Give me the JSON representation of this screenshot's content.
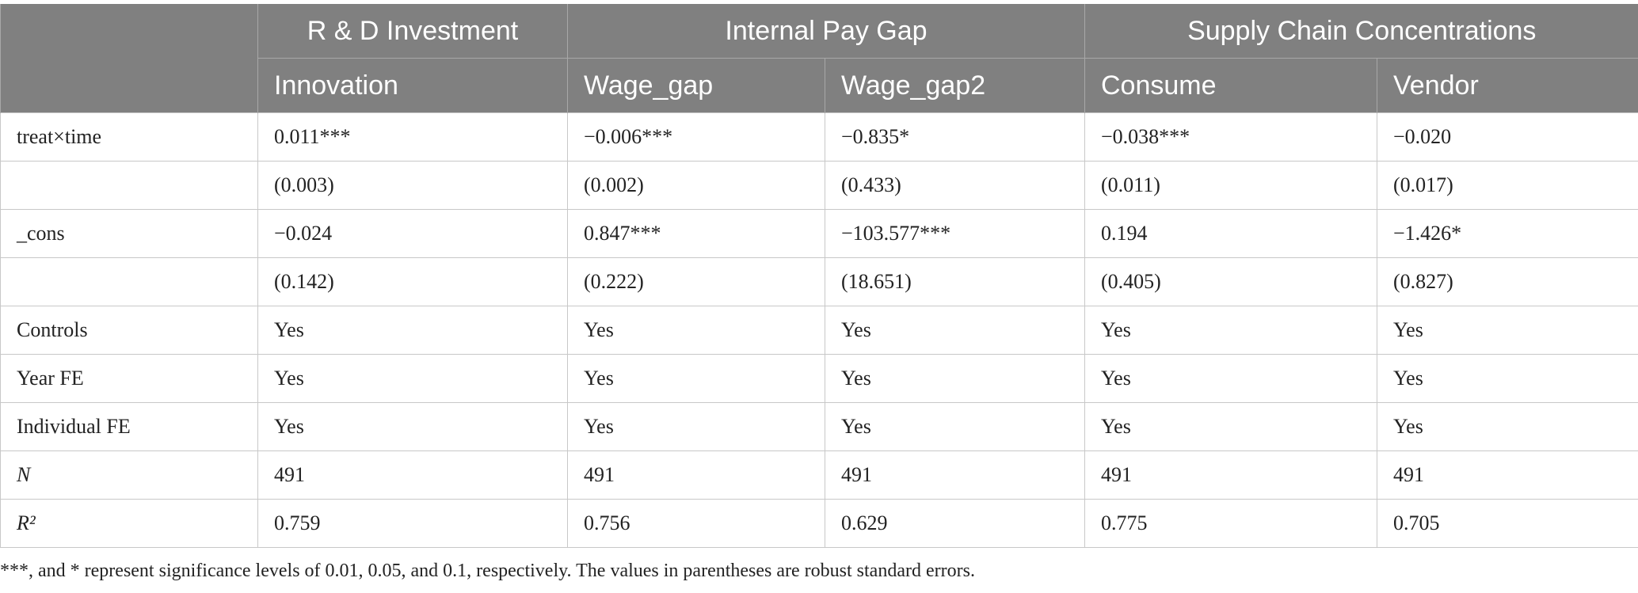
{
  "table": {
    "groups": [
      {
        "label": "R & D Investment",
        "span": 1
      },
      {
        "label": "Internal Pay Gap",
        "span": 2
      },
      {
        "label": "Supply Chain Concentrations",
        "span": 2
      }
    ],
    "columns": [
      "Innovation",
      "Wage_gap",
      "Wage_gap2",
      "Consume",
      "Vendor"
    ],
    "rows": [
      [
        "treat×time",
        "0.011***",
        "−0.006***",
        "−0.835*",
        "−0.038***",
        "−0.020"
      ],
      [
        null,
        "(0.003)",
        "(0.002)",
        "(0.433)",
        "(0.011)",
        "(0.017)"
      ],
      [
        "_cons",
        "−0.024",
        "0.847***",
        "−103.577***",
        "0.194",
        "−1.426*"
      ],
      [
        null,
        "(0.142)",
        "(0.222)",
        "(18.651)",
        "(0.405)",
        "(0.827)"
      ],
      [
        "Controls",
        "Yes",
        "Yes",
        "Yes",
        "Yes",
        "Yes"
      ],
      [
        "Year FE",
        "Yes",
        "Yes",
        "Yes",
        "Yes",
        "Yes"
      ],
      [
        "Individual FE",
        "Yes",
        "Yes",
        "Yes",
        "Yes",
        "Yes"
      ],
      [
        "N",
        "491",
        "491",
        "491",
        "491",
        "491"
      ],
      [
        "R²",
        "0.759",
        "0.756",
        "0.629",
        "0.775",
        "0.705"
      ]
    ],
    "italic_labels": [
      "N",
      "R²"
    ],
    "note": "***, and * represent significance levels of 0.01, 0.05, and 0.1, respectively. The values in parentheses are robust standard errors."
  }
}
